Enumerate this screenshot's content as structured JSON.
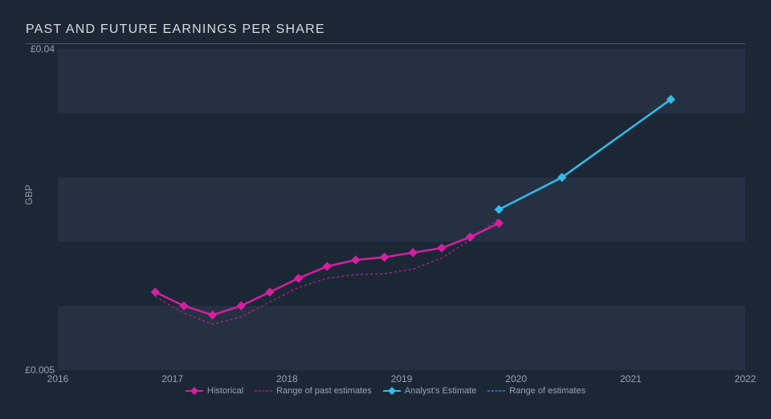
{
  "chart": {
    "type": "line",
    "title": "PAST AND FUTURE EARNINGS PER SHARE",
    "background_color": "#1c2736",
    "gridband_colors": [
      "#253143",
      "#1c2736"
    ],
    "title_color": "#d8dce2",
    "title_fontsize": 16,
    "axis_label_color": "#8f98a9",
    "tick_color": "#9aa2b1",
    "tick_fontsize": 12,
    "ylabel": "GBP",
    "xlim": [
      2016,
      2022
    ],
    "ylim": [
      0.005,
      0.04
    ],
    "ytick_positions": [
      0.005,
      0.04
    ],
    "ytick_labels": [
      "£0.005",
      "£0.04"
    ],
    "xtick_positions": [
      2016,
      2017,
      2018,
      2019,
      2020,
      2021,
      2022
    ],
    "xtick_labels": [
      "2016",
      "2017",
      "2018",
      "2019",
      "2020",
      "2021",
      "2022"
    ],
    "series": {
      "historical": {
        "label": "Historical",
        "color": "#d61fa0",
        "line_width": 2.5,
        "marker": "diamond",
        "marker_size": 8,
        "x": [
          2016.85,
          2017.1,
          2017.35,
          2017.6,
          2017.85,
          2018.1,
          2018.35,
          2018.6,
          2018.85,
          2019.1,
          2019.35,
          2019.6,
          2019.85
        ],
        "y": [
          0.0135,
          0.012,
          0.011,
          0.012,
          0.0135,
          0.015,
          0.0163,
          0.017,
          0.0173,
          0.0178,
          0.0183,
          0.0195,
          0.021
        ]
      },
      "past_estimates": {
        "label": "Range of past estimates",
        "color": "#d61fa0",
        "dashed": true,
        "line_width": 1,
        "x": [
          2016.85,
          2017.1,
          2017.35,
          2017.6,
          2017.85,
          2018.1,
          2018.35,
          2018.6,
          2018.85,
          2019.1,
          2019.35,
          2019.6,
          2019.85
        ],
        "y": [
          0.013,
          0.0112,
          0.01,
          0.0108,
          0.0124,
          0.014,
          0.015,
          0.0154,
          0.0155,
          0.016,
          0.0172,
          0.0192,
          0.0215
        ]
      },
      "analyst": {
        "label": "Analyst's Estimate",
        "color": "#33bce9",
        "line_width": 2.5,
        "marker": "diamond",
        "marker_size": 8,
        "x": [
          2019.85,
          2020.4,
          2021.35
        ],
        "y": [
          0.0225,
          0.026,
          0.0345
        ]
      },
      "future_estimates": {
        "label": "Range of estimates",
        "color": "#33bce9",
        "dashed": true,
        "line_width": 1,
        "x": [
          2019.85,
          2020.4,
          2021.35
        ],
        "y": [
          0.0225,
          0.026,
          0.0345
        ]
      }
    },
    "legend_order": [
      "historical",
      "past_estimates",
      "analyst",
      "future_estimates"
    ]
  }
}
